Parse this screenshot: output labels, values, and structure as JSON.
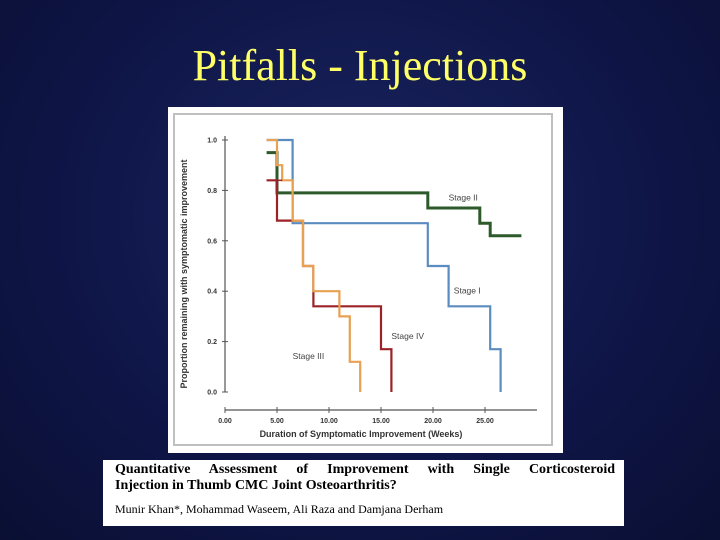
{
  "slide": {
    "title": "Pitfalls - Injections"
  },
  "paper": {
    "title_line1": "Quantitative Assessment of Improvement with Single Corticosteroid",
    "title_line2": "Injection in Thumb CMC Joint Osteoarthritis?",
    "authors": "Munir Khan*, Mohammad Waseem, Ali Raza and Damjana Derham"
  },
  "chart_data": {
    "type": "line",
    "title": "",
    "xlabel": "Duration of Symptomatic Improvement (Weeks)",
    "ylabel": "Proportion remaining with symptomatic improvement",
    "xlim": [
      0,
      30
    ],
    "ylim": [
      0,
      1.0
    ],
    "x_ticks": [
      "0.00",
      "5.00",
      "10.00",
      "15.00",
      "20.00",
      "25.00"
    ],
    "y_ticks": [
      "0.0",
      "0.2",
      "0.4",
      "0.6",
      "0.8",
      "1.0"
    ],
    "grid": false,
    "series": [
      {
        "name": "Stage II",
        "color": "#2d5a2b",
        "steps": [
          [
            4,
            0.95
          ],
          [
            5,
            0.95
          ],
          [
            5,
            0.79
          ],
          [
            19.5,
            0.79
          ],
          [
            19.5,
            0.73
          ],
          [
            24.5,
            0.73
          ],
          [
            24.5,
            0.67
          ],
          [
            25.5,
            0.67
          ],
          [
            25.5,
            0.62
          ],
          [
            28.5,
            0.62
          ]
        ]
      },
      {
        "name": "Stage I",
        "color": "#5b8cc0",
        "steps": [
          [
            4,
            1.0
          ],
          [
            6.5,
            1.0
          ],
          [
            6.5,
            0.67
          ],
          [
            19.5,
            0.67
          ],
          [
            19.5,
            0.5
          ],
          [
            21.5,
            0.5
          ],
          [
            21.5,
            0.34
          ],
          [
            25.5,
            0.34
          ],
          [
            25.5,
            0.17
          ],
          [
            26.5,
            0.17
          ],
          [
            26.5,
            0.0
          ]
        ]
      },
      {
        "name": "Stage IV",
        "color": "#9b2226",
        "steps": [
          [
            4,
            0.84
          ],
          [
            5,
            0.84
          ],
          [
            5,
            0.68
          ],
          [
            7.5,
            0.68
          ],
          [
            7.5,
            0.5
          ],
          [
            8.5,
            0.5
          ],
          [
            8.5,
            0.34
          ],
          [
            15,
            0.34
          ],
          [
            15,
            0.17
          ],
          [
            16,
            0.17
          ],
          [
            16,
            0.0
          ]
        ]
      },
      {
        "name": "Stage III",
        "color": "#e8a052",
        "steps": [
          [
            4,
            1.0
          ],
          [
            5,
            1.0
          ],
          [
            5,
            0.9
          ],
          [
            5.5,
            0.9
          ],
          [
            5.5,
            0.84
          ],
          [
            6.5,
            0.84
          ],
          [
            6.5,
            0.68
          ],
          [
            7.5,
            0.68
          ],
          [
            7.5,
            0.5
          ],
          [
            8.5,
            0.5
          ],
          [
            8.5,
            0.4
          ],
          [
            11,
            0.4
          ],
          [
            11,
            0.3
          ],
          [
            12,
            0.3
          ],
          [
            12,
            0.12
          ],
          [
            13,
            0.12
          ],
          [
            13,
            0.0
          ]
        ]
      }
    ],
    "series_labels": [
      {
        "text": "Stage II",
        "x": 21.5,
        "y": 0.76
      },
      {
        "text": "Stage I",
        "x": 22,
        "y": 0.39
      },
      {
        "text": "Stage IV",
        "x": 16,
        "y": 0.21
      },
      {
        "text": "Stage III",
        "x": 6.5,
        "y": 0.13
      }
    ]
  }
}
